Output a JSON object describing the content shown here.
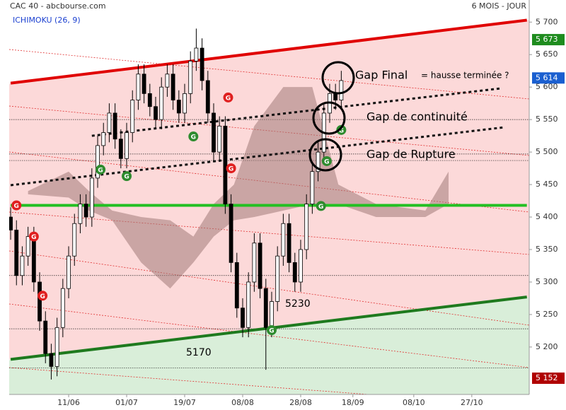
{
  "chart_data": {
    "type": "candlestick",
    "title": "CAC 40 - abcbourse.com",
    "subtitle": "6 MOIS - JOUR",
    "indicator": "ICHIMOKU (26, 9)",
    "xlim": [
      -0.5,
      178.8
    ],
    "ylim": [
      5127,
      5734
    ],
    "xticks": [
      {
        "value": 20,
        "label": "11/06"
      },
      {
        "value": 40,
        "label": "01/07"
      },
      {
        "value": 60,
        "label": "19/07"
      },
      {
        "value": 80,
        "label": "08/08"
      },
      {
        "value": 100,
        "label": "28/08"
      },
      {
        "value": 118,
        "label": "18/09"
      },
      {
        "value": 139,
        "label": "08/10"
      },
      {
        "value": 159,
        "label": "27/10"
      }
    ],
    "yticks": [
      {
        "value": 5200,
        "label": "5 200"
      },
      {
        "value": 5250,
        "label": "5 250"
      },
      {
        "value": 5300,
        "label": "5 300"
      },
      {
        "value": 5350,
        "label": "5 350"
      },
      {
        "value": 5400,
        "label": "5 400"
      },
      {
        "value": 5450,
        "label": "5 450"
      },
      {
        "value": 5500,
        "label": "5 500"
      },
      {
        "value": 5550,
        "label": "5 550"
      },
      {
        "value": 5600,
        "label": "5 600"
      },
      {
        "value": 5650,
        "label": "5 650"
      },
      {
        "value": 5700,
        "label": "5 700"
      }
    ],
    "tags": [
      {
        "value": 5673,
        "label": "5 673",
        "color": "#1e8c1e"
      },
      {
        "value": 5614,
        "label": "5 614",
        "color": "#1a5fd0"
      },
      {
        "value": 5152,
        "label": "5 152",
        "color": "#b00000"
      }
    ],
    "candles": {
      "x": [
        0,
        2,
        4,
        6,
        8,
        10,
        12,
        14,
        16,
        18,
        20,
        22,
        24,
        26,
        28,
        30,
        32,
        34,
        36,
        38,
        40,
        42,
        44,
        46,
        48,
        50,
        52,
        54,
        56,
        58,
        60,
        62,
        64,
        66,
        68,
        70,
        72,
        74,
        76,
        78,
        80,
        82,
        84,
        86,
        88,
        90,
        92,
        94,
        96,
        98,
        100,
        102,
        104,
        106,
        108,
        110,
        112,
        114
      ],
      "open": [
        5400,
        5380,
        5310,
        5340,
        5370,
        5300,
        5240,
        5190,
        5170,
        5230,
        5290,
        5340,
        5390,
        5420,
        5400,
        5460,
        5510,
        5530,
        5560,
        5520,
        5490,
        5530,
        5580,
        5620,
        5590,
        5570,
        5550,
        5600,
        5620,
        5580,
        5560,
        5590,
        5640,
        5660,
        5610,
        5560,
        5500,
        5540,
        5420,
        5330,
        5260,
        5230,
        5300,
        5360,
        5290,
        5230,
        5270,
        5340,
        5390,
        5330,
        5300,
        5350,
        5420,
        5470,
        5500,
        5560,
        5590,
        5580
      ],
      "high": [
        5415,
        5395,
        5355,
        5385,
        5385,
        5315,
        5255,
        5205,
        5245,
        5305,
        5355,
        5405,
        5435,
        5435,
        5475,
        5525,
        5545,
        5575,
        5575,
        5535,
        5545,
        5595,
        5635,
        5635,
        5605,
        5585,
        5615,
        5635,
        5635,
        5595,
        5605,
        5655,
        5690,
        5675,
        5625,
        5575,
        5555,
        5555,
        5435,
        5345,
        5275,
        5315,
        5375,
        5375,
        5305,
        5285,
        5355,
        5405,
        5405,
        5345,
        5365,
        5435,
        5485,
        5515,
        5575,
        5605,
        5605,
        5625
      ],
      "low": [
        5365,
        5295,
        5295,
        5325,
        5285,
        5225,
        5175,
        5150,
        5155,
        5215,
        5275,
        5325,
        5375,
        5385,
        5385,
        5445,
        5495,
        5515,
        5505,
        5475,
        5475,
        5515,
        5565,
        5575,
        5555,
        5535,
        5535,
        5585,
        5565,
        5545,
        5545,
        5575,
        5625,
        5595,
        5545,
        5485,
        5485,
        5405,
        5315,
        5245,
        5215,
        5215,
        5285,
        5275,
        5165,
        5215,
        5255,
        5325,
        5315,
        5285,
        5285,
        5335,
        5405,
        5455,
        5485,
        5545,
        5565,
        5565
      ],
      "close": [
        5380,
        5310,
        5340,
        5370,
        5300,
        5240,
        5190,
        5170,
        5230,
        5290,
        5340,
        5390,
        5420,
        5400,
        5460,
        5510,
        5530,
        5560,
        5520,
        5490,
        5530,
        5580,
        5620,
        5590,
        5570,
        5550,
        5600,
        5620,
        5580,
        5560,
        5590,
        5640,
        5660,
        5610,
        5560,
        5500,
        5540,
        5420,
        5330,
        5260,
        5230,
        5300,
        5360,
        5290,
        5230,
        5270,
        5340,
        5390,
        5330,
        5300,
        5350,
        5420,
        5470,
        5500,
        5560,
        5590,
        5580,
        5610
      ]
    },
    "cloud": {
      "color": "#a07a78",
      "x": [
        6,
        20,
        27,
        35,
        45,
        55,
        63,
        70,
        77,
        84,
        94,
        104,
        113,
        126,
        143,
        151
      ],
      "upper": [
        5440,
        5470,
        5440,
        5410,
        5400,
        5395,
        5370,
        5420,
        5450,
        5540,
        5600,
        5600,
        5450,
        5420,
        5410,
        5470
      ],
      "lower": [
        5435,
        5430,
        5410,
        5395,
        5330,
        5290,
        5330,
        5370,
        5395,
        5400,
        5410,
        5420,
        5420,
        5400,
        5400,
        5420
      ]
    },
    "trendlines": [
      {
        "color": "#e00000",
        "style": "solid",
        "x": [
          0,
          178
        ],
        "y": [
          5606,
          5703
        ]
      },
      {
        "color": "#1e7a1e",
        "style": "solid",
        "x": [
          0,
          178
        ],
        "y": [
          5181,
          5277
        ]
      },
      {
        "color": "#22c022",
        "style": "solid",
        "x": [
          0,
          178
        ],
        "y": [
          5418,
          5418
        ]
      },
      {
        "color": "#111111",
        "style": "dotted",
        "x": [
          0,
          170
        ],
        "y": [
          5449,
          5538
        ]
      },
      {
        "color": "#111111",
        "style": "dotted",
        "x": [
          28,
          169
        ],
        "y": [
          5525,
          5598
        ]
      }
    ],
    "levels": [
      5550,
      5497,
      5487,
      5310,
      5228,
      5168
    ],
    "signals": [
      {
        "label": "G",
        "color": "#e02020",
        "x": 2,
        "y": 5418
      },
      {
        "label": "G",
        "color": "#e02020",
        "x": 8,
        "y": 5370
      },
      {
        "label": "G",
        "color": "#e02020",
        "x": 11,
        "y": 5279
      },
      {
        "label": "G",
        "color": "#e02020",
        "x": 75,
        "y": 5584
      },
      {
        "label": "G",
        "color": "#e02020",
        "x": 76,
        "y": 5475
      },
      {
        "label": "G",
        "color": "#2e8b2e",
        "x": 31,
        "y": 5473
      },
      {
        "label": "G",
        "color": "#2e8b2e",
        "x": 40,
        "y": 5463
      },
      {
        "label": "G",
        "color": "#2e8b2e",
        "x": 63,
        "y": 5524
      },
      {
        "label": "G",
        "color": "#2e8b2e",
        "x": 90,
        "y": 5226
      },
      {
        "label": "G",
        "color": "#2e8b2e",
        "x": 107,
        "y": 5417
      },
      {
        "label": "G",
        "color": "#2e8b2e",
        "x": 109,
        "y": 5486
      },
      {
        "label": "G",
        "color": "#2e8b2e",
        "x": 114,
        "y": 5534
      }
    ],
    "annotations": {
      "gap_final": "Gap Final",
      "question": "= hausse terminée ?",
      "gap_continuite": "Gap de continuité",
      "gap_rupture": "Gap de Rupture",
      "level_5230": "5230",
      "level_5170": "5170"
    }
  }
}
